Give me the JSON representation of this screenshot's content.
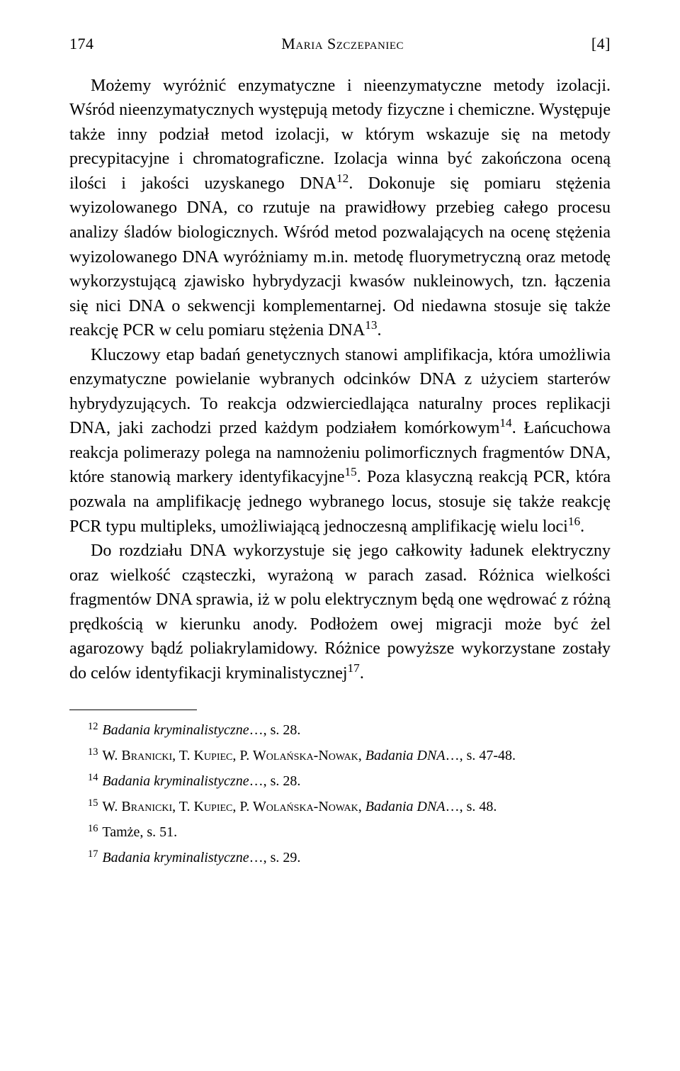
{
  "header": {
    "page_number": "174",
    "author": "Maria Szczepaniec",
    "bracket_number": "[4]"
  },
  "body": {
    "p1_a": "Możemy wyróżnić enzymatyczne i nieenzymatyczne metody izolacji. Wśród nieenzymatycznych występują metody fizyczne i chemiczne. Występuje także inny podział metod izolacji, w którym wskazuje się na metody precypitacyjne i chromatograficzne. Izolacja winna być zakończona oceną ilości i jakości uzyskanego DNA",
    "p1_ref12": "12",
    "p1_b": ". Dokonuje się pomiaru stężenia wyizolowanego DNA, co rzutuje na prawidłowy przebieg całego procesu analizy śladów biologicznych. Wśród metod pozwalających na ocenę stężenia wyizolowanego DNA wyróżniamy m.in. metodę fluorymetryczną oraz metodę wykorzystującą zjawisko hybrydyzacji kwasów nukleinowych, tzn. łączenia się nici DNA o sekwencji komplementarnej. Od niedawna stosuje się także reakcję PCR w celu pomiaru stężenia DNA",
    "p1_ref13": "13",
    "p1_c": ".",
    "p2_a": "Kluczowy etap badań genetycznych stanowi amplifikacja, która umożliwia enzymatyczne powielanie wybranych odcinków DNA z użyciem starterów hybrydyzujących. To reakcja odzwierciedlająca naturalny proces replikacji DNA, jaki zachodzi przed każdym podziałem komórkowym",
    "p2_ref14": "14",
    "p2_b": ". Łańcuchowa reakcja polimerazy polega na namnożeniu polimorficznych fragmentów DNA, które stanowią markery identyfikacyjne",
    "p2_ref15": "15",
    "p2_c": ". Poza klasyczną reakcją PCR, która pozwala na amplifikację jednego wybranego locus, stosuje się także reakcję PCR typu multipleks, umożliwiającą jednoczesną amplifikację wielu loci",
    "p2_ref16": "16",
    "p2_d": ".",
    "p3_a": "Do rozdziału DNA wykorzystuje się jego całkowity ładunek elektryczny oraz wielkość cząsteczki, wyrażoną w parach zasad. Różnica wielkości fragmentów DNA sprawia, iż w polu elektrycznym będą one wędrować z różną prędkością w kierunku anody. Podłożem owej migracji może być żel agarozowy bądź poliakrylamidowy. Różnice powyższe wykorzystane zostały do celów identyfikacji kryminalistycznej",
    "p3_ref17": "17",
    "p3_b": "."
  },
  "footnotes": {
    "n12": {
      "num": "12",
      "title": "Badania kryminalistyczne",
      "suffix": "…, s. 28."
    },
    "n13": {
      "num": "13",
      "authors": "W. Branicki, T. Kupiec, P. Wolańska-Nowak, ",
      "title": "Badania DNA",
      "suffix": "…, s. 47-48."
    },
    "n14": {
      "num": "14",
      "title": "Badania kryminalistyczne",
      "suffix": "…, s. 28."
    },
    "n15": {
      "num": "15",
      "authors": "W. Branicki, T. Kupiec, P. Wolańska-Nowak, ",
      "title": "Badania DNA",
      "suffix": "…, s. 48."
    },
    "n16": {
      "num": "16",
      "text": "Tamże, s. 51."
    },
    "n17": {
      "num": "17",
      "title": "Badania kryminalistyczne",
      "suffix": "…, s. 29."
    }
  }
}
